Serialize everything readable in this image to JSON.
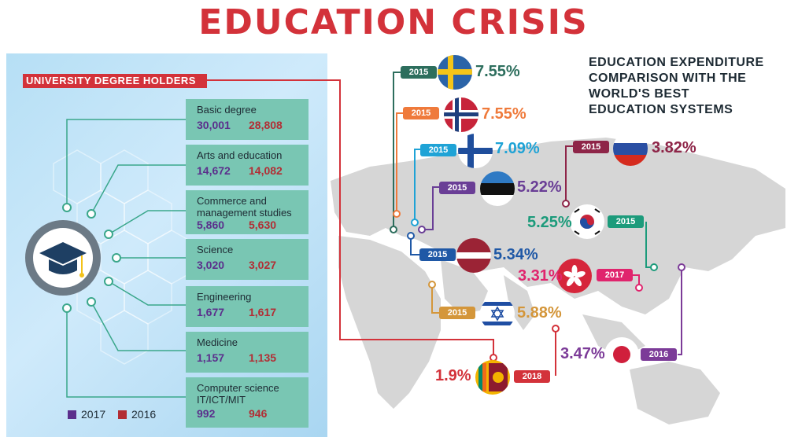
{
  "title": "EDUCATION CRISIS",
  "panel": {
    "title": "UNIVERSITY DEGREE HOLDERS",
    "legend": [
      {
        "label": "2017",
        "color": "#5b2f8c"
      },
      {
        "label": "2016",
        "color": "#b22d34"
      }
    ]
  },
  "degrees": [
    {
      "label": "Basic degree",
      "v2017": "30,001",
      "v2016": "28,808"
    },
    {
      "label": "Arts and education",
      "v2017": "14,672",
      "v2016": "14,082"
    },
    {
      "label": "Commerce and management studies",
      "v2017": "5,860",
      "v2016": "5,630"
    },
    {
      "label": "Science",
      "v2017": "3,020",
      "v2016": "3,027"
    },
    {
      "label": "Engineering",
      "v2017": "1,677",
      "v2016": "1,617"
    },
    {
      "label": "Medicine",
      "v2017": "1,157",
      "v2016": "1,135"
    },
    {
      "label": "Computer science IT/ICT/MIT",
      "v2017": "992",
      "v2016": "946"
    }
  ],
  "map": {
    "title": "EDUCATION EXPENDITURE COMPARISON WITH THE WORLD'S BEST EDUCATION SYSTEMS"
  },
  "countries": [
    {
      "flag": "sweden",
      "year": "2015",
      "pct": "7.55%",
      "color": "#2d6e5d"
    },
    {
      "flag": "norway",
      "year": "2015",
      "pct": "7.55%",
      "color": "#ef7a3b"
    },
    {
      "flag": "finland",
      "year": "2015",
      "pct": "7.09%",
      "color": "#1fa3d6"
    },
    {
      "flag": "estonia",
      "year": "2015",
      "pct": "5.22%",
      "color": "#6a3e96"
    },
    {
      "flag": "latvia",
      "year": "2015",
      "pct": "5.34%",
      "color": "#1f58a6"
    },
    {
      "flag": "israel",
      "year": "2015",
      "pct": "5.88%",
      "color": "#d4963a"
    },
    {
      "flag": "sri-lanka",
      "year": "2018",
      "pct": "1.9%",
      "color": "#d3323a"
    },
    {
      "flag": "russia",
      "year": "2015",
      "pct": "3.82%",
      "color": "#8e2548"
    },
    {
      "flag": "south-korea",
      "year": "2015",
      "pct": "5.25%",
      "color": "#1c9b7b"
    },
    {
      "flag": "hong-kong",
      "year": "2017",
      "pct": "3.31%",
      "color": "#e0246d"
    },
    {
      "flag": "japan",
      "year": "2016",
      "pct": "3.47%",
      "color": "#7c3b98"
    }
  ],
  "chart_data": {
    "type": "table",
    "title": "UNIVERSITY DEGREE HOLDERS",
    "categories": [
      "Basic degree",
      "Arts and education",
      "Commerce and management studies",
      "Science",
      "Engineering",
      "Medicine",
      "Computer science IT/ICT/MIT"
    ],
    "series": [
      {
        "name": "2017",
        "values": [
          30001,
          14672,
          5860,
          3020,
          1677,
          1157,
          992
        ]
      },
      {
        "name": "2016",
        "values": [
          28808,
          14082,
          5630,
          3027,
          1617,
          1135,
          946
        ]
      }
    ]
  }
}
